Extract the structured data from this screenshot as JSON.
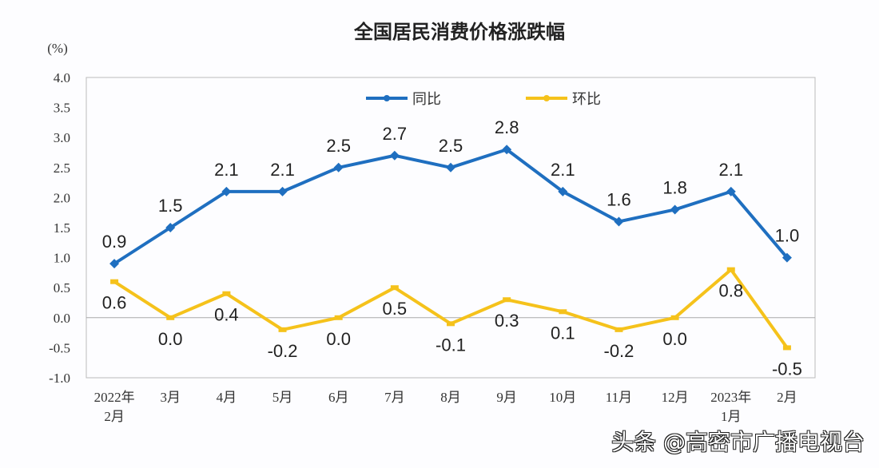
{
  "chart_data": {
    "type": "line",
    "title": "全国居民消费价格涨跌幅",
    "ylabel": "(%)",
    "ylim": [
      -1.0,
      4.0
    ],
    "yticks": [
      "4.0",
      "3.5",
      "3.0",
      "2.5",
      "2.0",
      "1.5",
      "1.0",
      "0.5",
      "0.0",
      "-0.5",
      "-1.0"
    ],
    "grid": false,
    "legend": "top-center",
    "categories": [
      [
        "2022年",
        "2月"
      ],
      [
        "3月"
      ],
      [
        "4月"
      ],
      [
        "5月"
      ],
      [
        "6月"
      ],
      [
        "7月"
      ],
      [
        "8月"
      ],
      [
        "9月"
      ],
      [
        "10月"
      ],
      [
        "11月"
      ],
      [
        "12月"
      ],
      [
        "2023年",
        "1月"
      ],
      [
        "2月"
      ]
    ],
    "series": [
      {
        "name": "同比",
        "color": "#1f6fc0",
        "values": [
          0.9,
          1.5,
          2.1,
          2.1,
          2.5,
          2.7,
          2.5,
          2.8,
          2.1,
          1.6,
          1.8,
          2.1,
          1.0
        ],
        "labels": [
          "0.9",
          "1.5",
          "2.1",
          "2.1",
          "2.5",
          "2.7",
          "2.5",
          "2.8",
          "2.1",
          "1.6",
          "1.8",
          "2.1",
          "1.0"
        ]
      },
      {
        "name": "环比",
        "color": "#f5c21b",
        "values": [
          0.6,
          0.0,
          0.4,
          -0.2,
          0.0,
          0.5,
          -0.1,
          0.3,
          0.1,
          -0.2,
          0.0,
          0.8,
          -0.5
        ],
        "labels": [
          "0.6",
          "0.0",
          "0.4",
          "-0.2",
          "0.0",
          "0.5",
          "-0.1",
          "0.3",
          "0.1",
          "-0.2",
          "0.0",
          "0.8",
          "-0.5"
        ]
      }
    ]
  },
  "watermark": "头条 @高密市广播电视台"
}
